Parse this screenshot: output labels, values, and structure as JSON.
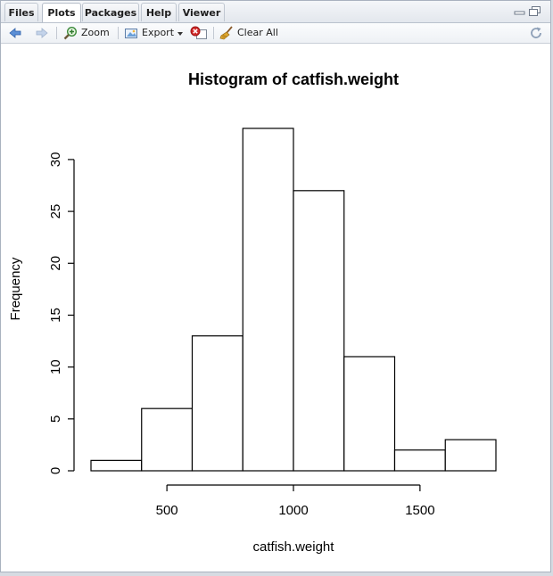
{
  "tabs": [
    {
      "label": "Files",
      "active": false
    },
    {
      "label": "Plots",
      "active": true
    },
    {
      "label": "Packages",
      "active": false
    },
    {
      "label": "Help",
      "active": false
    },
    {
      "label": "Viewer",
      "active": false
    }
  ],
  "toolbar": {
    "back_icon": "arrow-left-icon",
    "forward_icon": "arrow-right-icon",
    "zoom_label": "Zoom",
    "export_label": "Export",
    "remove_icon": "remove-plot-icon",
    "clear_label": "Clear All",
    "refresh_icon": "refresh-icon"
  },
  "colors": {
    "accent": "#2e6bc6",
    "tab_border": "#b5bdc8",
    "bar_fill": "#ffffff",
    "bar_stroke": "#000000"
  },
  "chart_data": {
    "type": "bar",
    "title": "Histogram of catfish.weight",
    "xlabel": "catfish.weight",
    "ylabel": "Frequency",
    "bins": [
      {
        "start": 200,
        "end": 400,
        "count": 1
      },
      {
        "start": 400,
        "end": 600,
        "count": 6
      },
      {
        "start": 600,
        "end": 800,
        "count": 13
      },
      {
        "start": 800,
        "end": 1000,
        "count": 33
      },
      {
        "start": 1000,
        "end": 1200,
        "count": 27
      },
      {
        "start": 1200,
        "end": 1400,
        "count": 11
      },
      {
        "start": 1400,
        "end": 1600,
        "count": 2
      },
      {
        "start": 1600,
        "end": 1800,
        "count": 3
      }
    ],
    "xlim": [
      200,
      1800
    ],
    "ylim": [
      0,
      33
    ],
    "xticks": [
      500,
      1000,
      1500
    ],
    "yticks": [
      0,
      5,
      10,
      15,
      20,
      25,
      30
    ],
    "grid": false,
    "legend": "none"
  }
}
